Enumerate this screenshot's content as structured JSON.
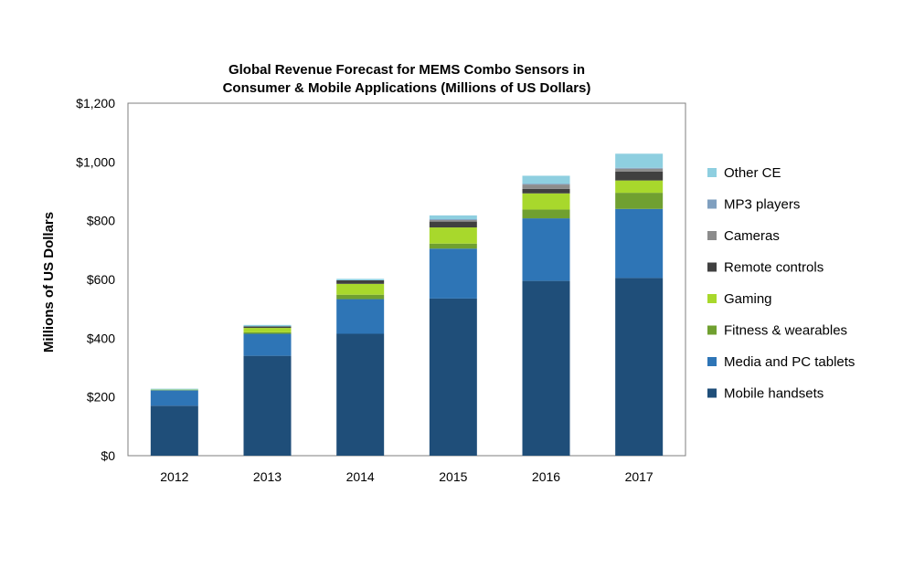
{
  "chart_data": {
    "type": "bar",
    "stacked": true,
    "title_lines": [
      "Global Revenue Forecast for MEMS Combo Sensors in",
      "Consumer & Mobile Applications (Millions of US Dollars)"
    ],
    "xlabel": "",
    "ylabel": "Millions of US Dollars",
    "ylim": [
      0,
      1200
    ],
    "yticks": [
      0,
      200,
      400,
      600,
      800,
      1000,
      1200
    ],
    "ytick_labels": [
      "$0",
      "$200",
      "$400",
      "$600",
      "$800",
      "$1,000",
      "$1,200"
    ],
    "categories": [
      "2012",
      "2013",
      "2014",
      "2015",
      "2016",
      "2017"
    ],
    "legend_position": "right",
    "series": [
      {
        "name": "Mobile handsets",
        "color": "#1f4e79",
        "values": [
          170,
          340,
          415,
          535,
          595,
          605
        ]
      },
      {
        "name": "Media and PC tablets",
        "color": "#2e75b6",
        "values": [
          53,
          75,
          118,
          170,
          213,
          235
        ]
      },
      {
        "name": "Fitness & wearables",
        "color": "#70a030",
        "values": [
          0,
          5,
          15,
          17,
          30,
          55
        ]
      },
      {
        "name": "Gaming",
        "color": "#a8d82c",
        "values": [
          2,
          15,
          37,
          55,
          55,
          42
        ]
      },
      {
        "name": "Remote controls",
        "color": "#404040",
        "values": [
          0,
          5,
          12,
          20,
          15,
          30
        ]
      },
      {
        "name": "Cameras",
        "color": "#8c8c8c",
        "values": [
          0,
          0,
          0,
          5,
          15,
          10
        ]
      },
      {
        "name": "MP3 players",
        "color": "#7f9fbf",
        "values": [
          0,
          0,
          0,
          3,
          3,
          3
        ]
      },
      {
        "name": "Other CE",
        "color": "#8ecfe0",
        "values": [
          3,
          5,
          5,
          13,
          27,
          48
        ]
      }
    ]
  }
}
